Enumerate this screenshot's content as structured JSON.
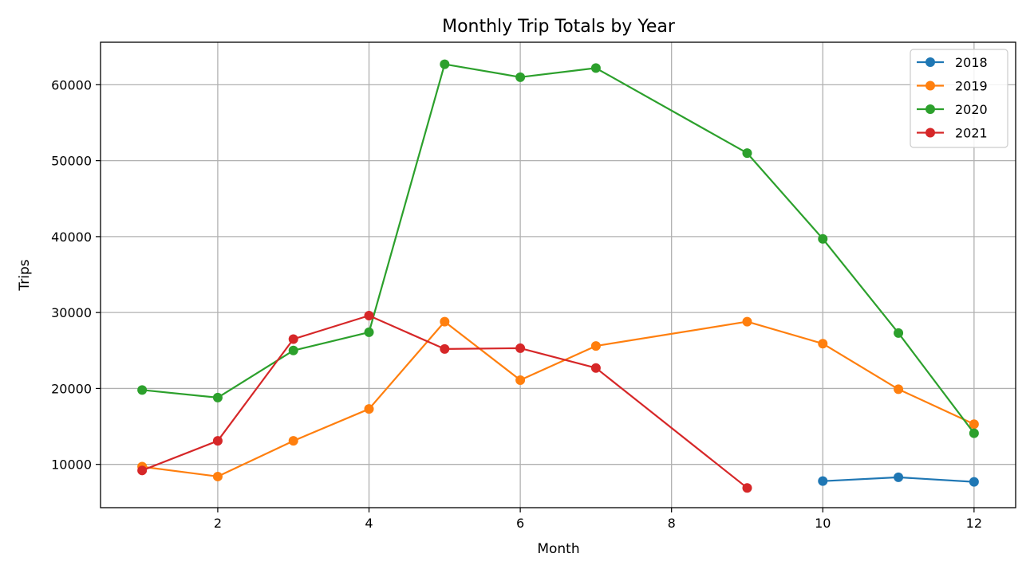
{
  "chart_data": {
    "type": "line",
    "title": "Monthly Trip Totals by Year",
    "xlabel": "Month",
    "ylabel": "Trips",
    "xlim": [
      0.45,
      12.55
    ],
    "ylim": [
      4300,
      65600
    ],
    "x_ticks": [
      2,
      4,
      6,
      8,
      10,
      12
    ],
    "y_ticks": [
      10000,
      20000,
      30000,
      40000,
      50000,
      60000
    ],
    "grid": true,
    "legend_position": "top-right",
    "series": [
      {
        "name": "2018",
        "color": "#1f77b4",
        "x": [
          10,
          11,
          12
        ],
        "values": [
          7800,
          8300,
          7700
        ]
      },
      {
        "name": "2019",
        "color": "#ff7f0e",
        "x": [
          1,
          2,
          3,
          4,
          5,
          6,
          7,
          9,
          10,
          11,
          12
        ],
        "values": [
          9700,
          8400,
          13100,
          17300,
          28800,
          21100,
          25600,
          28800,
          25900,
          19900,
          15300
        ]
      },
      {
        "name": "2020",
        "color": "#2ca02c",
        "x": [
          1,
          2,
          3,
          4,
          5,
          6,
          7,
          9,
          10,
          11,
          12
        ],
        "values": [
          19800,
          18800,
          25000,
          27400,
          62700,
          61000,
          62200,
          51000,
          39700,
          27300,
          14100
        ]
      },
      {
        "name": "2021",
        "color": "#d62728",
        "x": [
          1,
          2,
          3,
          4,
          5,
          6,
          7,
          9
        ],
        "values": [
          9200,
          13100,
          26500,
          29600,
          25200,
          25300,
          22700,
          6900
        ]
      }
    ]
  }
}
